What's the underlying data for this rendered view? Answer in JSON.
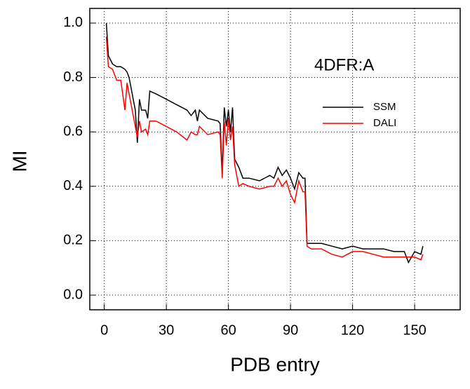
{
  "chart_data": {
    "type": "line",
    "x_label": "PDB entry",
    "y_label": "MI",
    "annotation": "4DFR:A",
    "x": [
      1,
      2,
      4,
      6,
      8,
      10,
      11,
      12,
      13,
      14,
      15,
      16,
      17,
      18,
      20,
      21,
      22,
      25,
      30,
      35,
      40,
      42,
      44,
      45,
      46,
      50,
      55,
      56,
      57,
      58,
      59,
      60,
      61,
      62,
      63,
      65,
      67,
      70,
      75,
      80,
      82,
      84,
      86,
      88,
      90,
      92,
      94,
      96,
      97,
      98,
      100,
      105,
      110,
      115,
      120,
      125,
      130,
      135,
      140,
      145,
      147,
      150,
      153,
      154
    ],
    "series": [
      {
        "name": "SSM",
        "color": "#000000",
        "values": [
          1.0,
          0.88,
          0.85,
          0.84,
          0.84,
          0.83,
          0.82,
          0.8,
          0.76,
          0.72,
          0.68,
          0.56,
          0.72,
          0.68,
          0.68,
          0.65,
          0.75,
          0.74,
          0.72,
          0.7,
          0.68,
          0.66,
          0.68,
          0.64,
          0.68,
          0.65,
          0.64,
          0.63,
          0.45,
          0.69,
          0.62,
          0.68,
          0.6,
          0.69,
          0.5,
          0.47,
          0.43,
          0.43,
          0.42,
          0.44,
          0.43,
          0.47,
          0.44,
          0.46,
          0.43,
          0.39,
          0.45,
          0.43,
          0.43,
          0.19,
          0.19,
          0.19,
          0.18,
          0.17,
          0.18,
          0.17,
          0.17,
          0.17,
          0.16,
          0.16,
          0.12,
          0.16,
          0.15,
          0.18
        ]
      },
      {
        "name": "DALI",
        "color": "#ff0000",
        "values": [
          0.95,
          0.84,
          0.83,
          0.79,
          0.79,
          0.68,
          0.78,
          0.74,
          0.7,
          0.66,
          0.62,
          0.58,
          0.64,
          0.6,
          0.61,
          0.59,
          0.64,
          0.64,
          0.62,
          0.6,
          0.57,
          0.6,
          0.59,
          0.59,
          0.62,
          0.59,
          0.6,
          0.59,
          0.43,
          0.64,
          0.55,
          0.65,
          0.57,
          0.62,
          0.48,
          0.4,
          0.41,
          0.4,
          0.39,
          0.4,
          0.4,
          0.43,
          0.4,
          0.42,
          0.37,
          0.34,
          0.42,
          0.38,
          0.38,
          0.18,
          0.17,
          0.17,
          0.15,
          0.14,
          0.16,
          0.16,
          0.15,
          0.14,
          0.14,
          0.14,
          0.14,
          0.14,
          0.13,
          0.15
        ]
      }
    ],
    "xlim": [
      -7,
      172
    ],
    "ylim": [
      -0.054,
      1.054
    ],
    "xticks": [
      0,
      30,
      60,
      90,
      120,
      150
    ],
    "yticks": [
      {
        "value": 0,
        "label": "0.0"
      },
      0.2,
      0.4,
      0.6,
      0.8,
      {
        "value": 1,
        "label": "1.0"
      }
    ],
    "grid": true,
    "legend": "upper right"
  }
}
